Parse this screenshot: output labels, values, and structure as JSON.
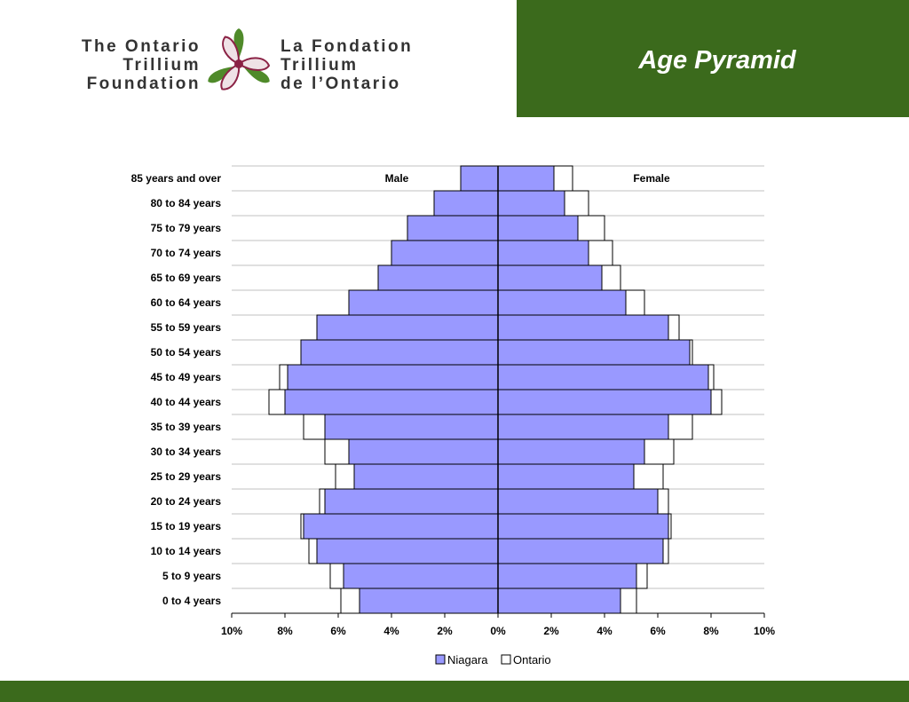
{
  "header": {
    "title": "Age Pyramid",
    "logo_en": [
      "The Ontario",
      "Trillium",
      "Foundation"
    ],
    "logo_fr": [
      "La Fondation",
      "Trillium",
      "de l’Ontario"
    ],
    "logo_icon": "trillium-flower-icon"
  },
  "colors": {
    "brand_green": "#3b6a1c",
    "niagara": "#9999ff",
    "ontario": "#ffffff",
    "gridline": "#c0c0c0"
  },
  "chart_data": {
    "type": "bar",
    "orientation": "horizontal-population-pyramid",
    "categories": [
      "85 years and over",
      "80 to 84 years",
      "75 to 79 years",
      "70 to 74 years",
      "65 to 69 years",
      "60 to 64 years",
      "55 to 59 years",
      "50 to 54 years",
      "45 to 49 years",
      "40 to 44 years",
      "35 to 39 years",
      "30 to 34 years",
      "25 to 29 years",
      "20 to 24 years",
      "15 to 19 years",
      "10 to 14 years",
      "5 to 9 years",
      "0 to 4 years"
    ],
    "x_ticks": [
      "10%",
      "8%",
      "6%",
      "4%",
      "2%",
      "0%",
      "2%",
      "4%",
      "6%",
      "8%",
      "10%"
    ],
    "xlim": [
      -10,
      10
    ],
    "side_labels": {
      "male": "Male",
      "female": "Female"
    },
    "legend_position": "bottom",
    "grid": true,
    "series": [
      {
        "name": "Niagara",
        "male": [
          1.4,
          2.4,
          3.4,
          4.0,
          4.5,
          5.6,
          6.8,
          7.4,
          7.9,
          8.0,
          6.5,
          5.6,
          5.4,
          6.5,
          7.3,
          6.8,
          5.8,
          5.2
        ],
        "female": [
          2.1,
          2.5,
          3.0,
          3.4,
          3.9,
          4.8,
          6.4,
          7.2,
          7.9,
          8.0,
          6.4,
          5.5,
          5.1,
          6.0,
          6.4,
          6.2,
          5.2,
          4.6
        ]
      },
      {
        "name": "Ontario",
        "male": [
          1.0,
          1.7,
          2.6,
          3.2,
          3.8,
          4.8,
          6.4,
          7.2,
          8.2,
          8.6,
          7.3,
          6.5,
          6.1,
          6.7,
          7.4,
          7.1,
          6.3,
          5.9
        ],
        "female": [
          2.8,
          3.4,
          4.0,
          4.3,
          4.6,
          5.5,
          6.8,
          7.3,
          8.1,
          8.4,
          7.3,
          6.6,
          6.2,
          6.4,
          6.5,
          6.4,
          5.6,
          5.2
        ]
      }
    ]
  }
}
